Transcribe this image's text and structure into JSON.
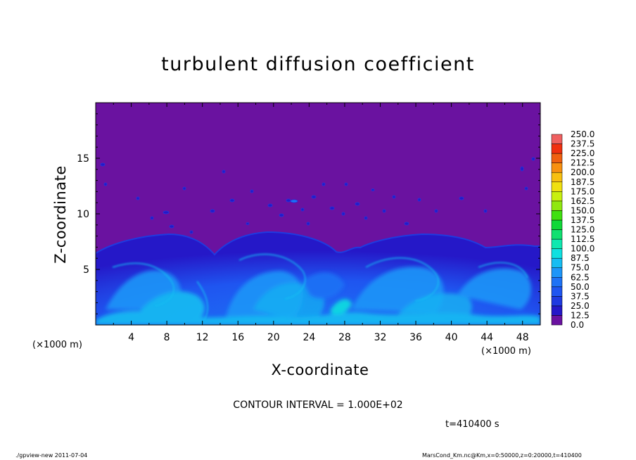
{
  "chart_data": {
    "type": "heatmap",
    "title": "turbulent diffusion coefficient",
    "xlabel": "X-coordinate",
    "ylabel": "Z-coordinate",
    "x_unit_label": "(×1000 m)",
    "x_unit_label_right": "(×1000 m)",
    "xlim": [
      0,
      50
    ],
    "ylim": [
      0,
      20
    ],
    "x_ticks": [
      4,
      8,
      12,
      16,
      20,
      24,
      28,
      32,
      36,
      40,
      44,
      48
    ],
    "y_ticks": [
      5,
      10,
      15
    ],
    "colorbar": {
      "levels": [
        "0.0",
        "12.5",
        "25.0",
        "37.5",
        "50.0",
        "62.5",
        "75.0",
        "87.5",
        "100.0",
        "112.5",
        "125.0",
        "137.5",
        "150.0",
        "162.5",
        "175.0",
        "187.5",
        "200.0",
        "212.5",
        "225.0",
        "237.5",
        "250.0"
      ],
      "colors": [
        "#6a12a0",
        "#2518c8",
        "#1f3ae0",
        "#1f55f0",
        "#1e72f5",
        "#1d95f8",
        "#16bdf2",
        "#10e0e0",
        "#0fe8b0",
        "#10e070",
        "#10d838",
        "#40e010",
        "#90e810",
        "#c8f010",
        "#f0e010",
        "#f8c010",
        "#f89010",
        "#f06010",
        "#f03010",
        "#f06060"
      ]
    },
    "field_regions": {
      "background_value": 0.0,
      "dominant_value_range": [
        12.5,
        62.5
      ],
      "note_values": "Turbulent boundary layer from z=0 to ~8 (×1000 m); max contour levels near 62.5–75 close to surface"
    }
  },
  "annotations": {
    "contour_interval": "CONTOUR INTERVAL = 1.000E+02",
    "time": "t=410400 s",
    "footer_left": "./gpview-new  2011-07-04",
    "footer_right": "MarsCond_Km.nc@Km,x=0:50000,z=0:20000,t=410400"
  },
  "colors": {
    "background_field": "#6a12a0",
    "turbulent_low": "#1f3ae0",
    "turbulent_mid": "#1e72f5",
    "turbulent_high": "#16bdf2"
  }
}
